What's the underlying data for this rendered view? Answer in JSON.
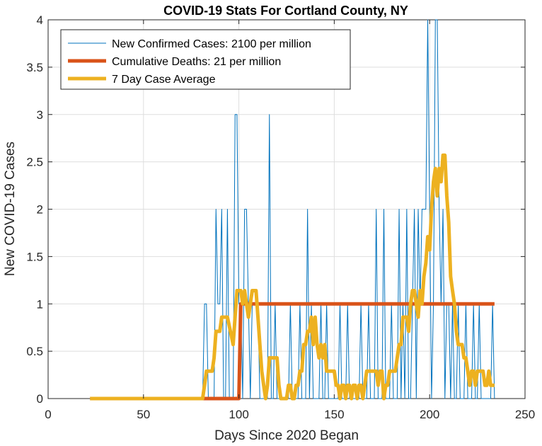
{
  "chart_data": {
    "type": "line",
    "title": "COVID-19 Stats For Cortland County, NY",
    "xlabel": "Days Since 2020 Began",
    "ylabel": "New COVID-19 Cases",
    "xlim": [
      0,
      250
    ],
    "ylim": [
      0,
      4
    ],
    "xticks": [
      "0",
      "50",
      "100",
      "150",
      "200",
      "250"
    ],
    "yticks": [
      "0",
      "0.5",
      "1",
      "1.5",
      "2",
      "2.5",
      "3",
      "3.5",
      "4"
    ],
    "grid": true,
    "legend_position": "top-left",
    "series": [
      {
        "name": "New Confirmed Cases: 2100 per million",
        "color": "#0072BD",
        "points": [
          [
            22,
            0
          ],
          [
            81,
            0
          ],
          [
            82,
            1
          ],
          [
            83,
            1
          ],
          [
            84,
            0
          ],
          [
            85,
            0
          ],
          [
            86,
            0
          ],
          [
            87,
            0
          ],
          [
            88,
            2
          ],
          [
            89,
            1
          ],
          [
            90,
            1
          ],
          [
            91,
            2
          ],
          [
            92,
            0
          ],
          [
            93,
            0
          ],
          [
            94,
            2
          ],
          [
            95,
            0
          ],
          [
            96,
            0
          ],
          [
            97,
            0
          ],
          [
            98,
            3
          ],
          [
            99,
            3
          ],
          [
            100,
            1
          ],
          [
            101,
            1
          ],
          [
            102,
            0
          ],
          [
            103,
            2
          ],
          [
            104,
            2
          ],
          [
            105,
            1
          ],
          [
            106,
            0
          ],
          [
            107,
            1
          ],
          [
            108,
            1
          ],
          [
            109,
            1
          ],
          [
            110,
            1
          ],
          [
            111,
            0
          ],
          [
            112,
            0
          ],
          [
            113,
            0
          ],
          [
            114,
            0
          ],
          [
            115,
            0
          ],
          [
            116,
            3
          ],
          [
            117,
            0
          ],
          [
            118,
            0
          ],
          [
            119,
            1
          ],
          [
            120,
            0
          ],
          [
            121,
            0
          ],
          [
            122,
            0
          ],
          [
            123,
            0
          ],
          [
            124,
            0
          ],
          [
            125,
            0
          ],
          [
            126,
            0
          ],
          [
            127,
            1
          ],
          [
            128,
            0
          ],
          [
            129,
            0
          ],
          [
            130,
            0
          ],
          [
            131,
            0
          ],
          [
            132,
            1
          ],
          [
            133,
            0
          ],
          [
            134,
            0
          ],
          [
            135,
            0
          ],
          [
            136,
            2
          ],
          [
            137,
            0
          ],
          [
            138,
            1
          ],
          [
            139,
            0
          ],
          [
            140,
            0
          ],
          [
            141,
            0
          ],
          [
            142,
            0
          ],
          [
            143,
            1
          ],
          [
            144,
            0
          ],
          [
            145,
            0
          ],
          [
            146,
            1
          ],
          [
            147,
            0
          ],
          [
            148,
            0
          ],
          [
            149,
            0
          ],
          [
            150,
            0
          ],
          [
            151,
            0
          ],
          [
            152,
            0
          ],
          [
            153,
            1
          ],
          [
            154,
            0
          ],
          [
            155,
            0
          ],
          [
            156,
            0
          ],
          [
            157,
            1
          ],
          [
            158,
            0
          ],
          [
            159,
            0
          ],
          [
            160,
            0
          ],
          [
            161,
            0
          ],
          [
            162,
            0
          ],
          [
            163,
            0
          ],
          [
            164,
            1
          ],
          [
            165,
            0
          ],
          [
            166,
            0
          ],
          [
            167,
            0
          ],
          [
            168,
            1
          ],
          [
            169,
            0
          ],
          [
            170,
            0
          ],
          [
            171,
            0
          ],
          [
            172,
            2
          ],
          [
            173,
            0
          ],
          [
            174,
            0
          ],
          [
            175,
            0
          ],
          [
            176,
            2
          ],
          [
            177,
            0
          ],
          [
            178,
            0
          ],
          [
            179,
            0
          ],
          [
            180,
            1
          ],
          [
            181,
            0
          ],
          [
            182,
            0
          ],
          [
            183,
            0
          ],
          [
            184,
            2
          ],
          [
            185,
            0
          ],
          [
            186,
            1
          ],
          [
            187,
            0
          ],
          [
            188,
            2
          ],
          [
            189,
            0
          ],
          [
            190,
            0
          ],
          [
            191,
            1
          ],
          [
            192,
            2
          ],
          [
            193,
            0
          ],
          [
            194,
            2
          ],
          [
            195,
            1
          ],
          [
            196,
            2
          ],
          [
            197,
            2
          ],
          [
            198,
            2
          ],
          [
            199,
            4
          ],
          [
            200,
            2
          ],
          [
            201,
            0
          ],
          [
            202,
            1
          ],
          [
            203,
            4
          ],
          [
            204,
            4
          ],
          [
            205,
            2
          ],
          [
            206,
            1
          ],
          [
            207,
            2
          ],
          [
            208,
            0
          ],
          [
            209,
            1
          ],
          [
            210,
            1
          ],
          [
            211,
            0
          ],
          [
            212,
            1
          ],
          [
            213,
            0
          ],
          [
            214,
            0
          ],
          [
            215,
            1
          ],
          [
            216,
            0
          ],
          [
            217,
            0
          ],
          [
            218,
            0
          ],
          [
            219,
            1
          ],
          [
            220,
            0
          ],
          [
            221,
            0
          ],
          [
            222,
            0
          ],
          [
            223,
            1
          ],
          [
            224,
            0
          ],
          [
            225,
            0
          ],
          [
            226,
            1
          ],
          [
            227,
            0
          ],
          [
            228,
            0
          ],
          [
            229,
            0
          ],
          [
            230,
            0
          ],
          [
            231,
            0
          ],
          [
            232,
            0
          ],
          [
            233,
            1
          ],
          [
            234,
            0
          ]
        ]
      },
      {
        "name": "Cumulative Deaths: 21 per million",
        "color": "#D95319",
        "points": [
          [
            22,
            0
          ],
          [
            100,
            0
          ],
          [
            101,
            1
          ],
          [
            234,
            1
          ]
        ]
      },
      {
        "name": "7 Day Case Average",
        "color": "#EDB120",
        "points": [
          [
            22,
            0
          ],
          [
            81,
            0
          ],
          [
            82,
            0.14
          ],
          [
            83,
            0.29
          ],
          [
            86,
            0.29
          ],
          [
            87,
            0.43
          ],
          [
            88,
            0.71
          ],
          [
            90,
            0.71
          ],
          [
            91,
            0.86
          ],
          [
            94,
            0.86
          ],
          [
            97,
            0.57
          ],
          [
            98,
            0.86
          ],
          [
            99,
            1.14
          ],
          [
            101,
            1.14
          ],
          [
            102,
            1.0
          ],
          [
            103,
            1.14
          ],
          [
            104,
            1.0
          ],
          [
            105,
            0.86
          ],
          [
            106,
            1.0
          ],
          [
            107,
            1.14
          ],
          [
            109,
            1.14
          ],
          [
            110,
            0.86
          ],
          [
            111,
            0.57
          ],
          [
            112,
            0.29
          ],
          [
            113,
            0.14
          ],
          [
            114,
            0
          ],
          [
            115,
            0.14
          ],
          [
            116,
            0.43
          ],
          [
            117,
            0.43
          ],
          [
            120,
            0.43
          ],
          [
            121,
            0.14
          ],
          [
            122,
            0
          ],
          [
            125,
            0
          ],
          [
            126,
            0.14
          ],
          [
            127,
            0.14
          ],
          [
            128,
            0
          ],
          [
            129,
            0
          ],
          [
            130,
            0.14
          ],
          [
            131,
            0.14
          ],
          [
            132,
            0.29
          ],
          [
            133,
            0.29
          ],
          [
            134,
            0.57
          ],
          [
            135,
            0.57
          ],
          [
            136,
            0.71
          ],
          [
            137,
            0.71
          ],
          [
            138,
            0.86
          ],
          [
            139,
            0.57
          ],
          [
            140,
            0.86
          ],
          [
            141,
            0.57
          ],
          [
            142,
            0.43
          ],
          [
            143,
            0.57
          ],
          [
            144,
            0.43
          ],
          [
            145,
            0.57
          ],
          [
            146,
            0.29
          ],
          [
            147,
            0.29
          ],
          [
            150,
            0.29
          ],
          [
            151,
            0.14
          ],
          [
            152,
            0.14
          ],
          [
            153,
            0
          ],
          [
            154,
            0.14
          ],
          [
            155,
            0.14
          ],
          [
            156,
            0
          ],
          [
            157,
            0.14
          ],
          [
            158,
            0.14
          ],
          [
            159,
            0
          ],
          [
            160,
            0.14
          ],
          [
            161,
            0.14
          ],
          [
            162,
            0
          ],
          [
            163,
            0.14
          ],
          [
            164,
            0.14
          ],
          [
            165,
            0
          ],
          [
            166,
            0.14
          ],
          [
            167,
            0.29
          ],
          [
            168,
            0.29
          ],
          [
            172,
            0.29
          ],
          [
            173,
            0.14
          ],
          [
            174,
            0.29
          ],
          [
            175,
            0.29
          ],
          [
            176,
            0
          ],
          [
            177,
            0.14
          ],
          [
            178,
            0.14
          ],
          [
            179,
            0.29
          ],
          [
            180,
            0.29
          ],
          [
            182,
            0.29
          ],
          [
            183,
            0.43
          ],
          [
            184,
            0.57
          ],
          [
            185,
            0.57
          ],
          [
            186,
            0.86
          ],
          [
            188,
            0.86
          ],
          [
            189,
            0.71
          ],
          [
            190,
            1.0
          ],
          [
            191,
            1.14
          ],
          [
            192,
            1.14
          ],
          [
            193,
            1.0
          ],
          [
            194,
            0.86
          ],
          [
            195,
            1.14
          ],
          [
            196,
            1.0
          ],
          [
            197,
            1.29
          ],
          [
            198,
            1.43
          ],
          [
            199,
            1.71
          ],
          [
            200,
            1.57
          ],
          [
            201,
            2.0
          ],
          [
            202,
            2.29
          ],
          [
            203,
            2.43
          ],
          [
            204,
            2.14
          ],
          [
            205,
            2.43
          ],
          [
            206,
            2.29
          ],
          [
            207,
            2.57
          ],
          [
            208,
            2.57
          ],
          [
            209,
            2.14
          ],
          [
            210,
            1.86
          ],
          [
            211,
            1.29
          ],
          [
            212,
            1.14
          ],
          [
            213,
            1.0
          ],
          [
            214,
            0.71
          ],
          [
            215,
            0.57
          ],
          [
            217,
            0.57
          ],
          [
            218,
            0.43
          ],
          [
            219,
            0.43
          ],
          [
            220,
            0.29
          ],
          [
            221,
            0.14
          ],
          [
            222,
            0.29
          ],
          [
            223,
            0.29
          ],
          [
            224,
            0.14
          ],
          [
            225,
            0.29
          ],
          [
            226,
            0.29
          ],
          [
            228,
            0.29
          ],
          [
            229,
            0.14
          ],
          [
            230,
            0.14
          ],
          [
            231,
            0.29
          ],
          [
            232,
            0.14
          ],
          [
            234,
            0.14
          ]
        ]
      }
    ]
  }
}
